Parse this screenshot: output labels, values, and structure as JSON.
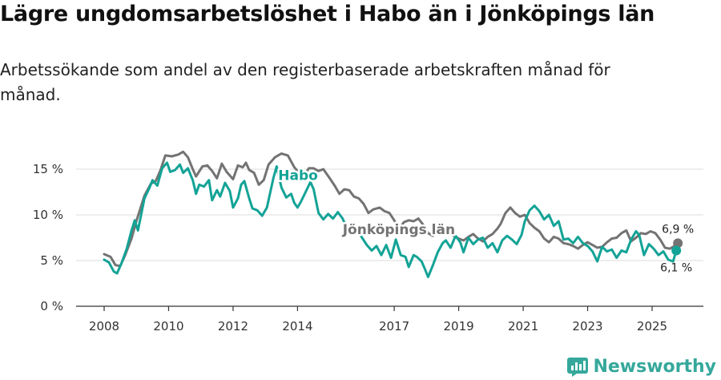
{
  "title": "Lägre ungdomsarbetslöshet i Habo än i Jönköpings län",
  "subtitle": "Arbetssökande som andel av den registerbaserade arbetskraften månad för månad.",
  "brand": {
    "name": "Newsworthy",
    "icon": "newsworthy-logo-icon",
    "color": "#35a89b"
  },
  "chart_data": {
    "type": "line",
    "title": "Lägre ungdomsarbetslöshet i Habo än i Jönköpings län",
    "xlabel": "",
    "ylabel": "",
    "xlim": [
      2007.6,
      2026.6
    ],
    "ylim": [
      0,
      17.5
    ],
    "grid": true,
    "y_ticks": [
      {
        "value": 0,
        "label": "0 %"
      },
      {
        "value": 5,
        "label": "5 %"
      },
      {
        "value": 10,
        "label": "10 %"
      },
      {
        "value": 15,
        "label": "15 %"
      }
    ],
    "x_ticks": [
      {
        "value": 2008,
        "label": "2008"
      },
      {
        "value": 2010,
        "label": "2010"
      },
      {
        "value": 2012,
        "label": "2012"
      },
      {
        "value": 2014,
        "label": "2014"
      },
      {
        "value": 2017,
        "label": "2017"
      },
      {
        "value": 2019,
        "label": "2019"
      },
      {
        "value": 2021,
        "label": "2021"
      },
      {
        "value": 2023,
        "label": "2023"
      },
      {
        "value": 2025,
        "label": "2025"
      }
    ],
    "series": [
      {
        "name": "Jönköpings län",
        "color": "#737373",
        "label_at": [
          2015.4,
          7.9
        ],
        "end_label": "6,9 %",
        "points": [
          [
            2008.0,
            5.7
          ],
          [
            2008.2,
            5.4
          ],
          [
            2008.35,
            4.5
          ],
          [
            2008.5,
            4.4
          ],
          [
            2008.65,
            5.6
          ],
          [
            2008.85,
            7.4
          ],
          [
            2009.0,
            9.3
          ],
          [
            2009.25,
            12.1
          ],
          [
            2009.45,
            13.4
          ],
          [
            2009.6,
            13.7
          ],
          [
            2009.75,
            14.9
          ],
          [
            2009.9,
            16.5
          ],
          [
            2010.1,
            16.4
          ],
          [
            2010.3,
            16.6
          ],
          [
            2010.45,
            16.9
          ],
          [
            2010.6,
            16.3
          ],
          [
            2010.75,
            15.0
          ],
          [
            2010.85,
            14.2
          ],
          [
            2011.05,
            15.3
          ],
          [
            2011.2,
            15.4
          ],
          [
            2011.35,
            14.8
          ],
          [
            2011.5,
            14.0
          ],
          [
            2011.65,
            15.6
          ],
          [
            2011.8,
            14.7
          ],
          [
            2012.0,
            13.9
          ],
          [
            2012.15,
            15.4
          ],
          [
            2012.3,
            15.2
          ],
          [
            2012.4,
            15.7
          ],
          [
            2012.5,
            14.9
          ],
          [
            2012.65,
            14.6
          ],
          [
            2012.8,
            13.3
          ],
          [
            2012.95,
            13.8
          ],
          [
            2013.1,
            15.5
          ],
          [
            2013.3,
            16.3
          ],
          [
            2013.5,
            16.7
          ],
          [
            2013.7,
            16.5
          ],
          [
            2013.9,
            15.2
          ],
          [
            2014.05,
            14.6
          ],
          [
            2014.2,
            14.3
          ],
          [
            2014.35,
            15.1
          ],
          [
            2014.5,
            15.1
          ],
          [
            2014.65,
            14.8
          ],
          [
            2014.8,
            15.0
          ],
          [
            2015.0,
            14.0
          ],
          [
            2015.15,
            13.2
          ],
          [
            2015.3,
            12.3
          ],
          [
            2015.45,
            12.8
          ],
          [
            2015.6,
            12.7
          ],
          [
            2015.75,
            12.0
          ],
          [
            2015.9,
            11.8
          ],
          [
            2016.05,
            11.2
          ],
          [
            2016.2,
            10.2
          ],
          [
            2016.35,
            10.6
          ],
          [
            2016.55,
            10.8
          ],
          [
            2016.7,
            10.4
          ],
          [
            2016.85,
            10.2
          ],
          [
            2017.0,
            9.4
          ],
          [
            2017.15,
            8.4
          ],
          [
            2017.3,
            9.2
          ],
          [
            2017.45,
            9.4
          ],
          [
            2017.6,
            9.3
          ],
          [
            2017.75,
            9.6
          ],
          [
            2017.9,
            8.9
          ],
          [
            2018.05,
            8.0
          ],
          [
            2018.2,
            7.7
          ],
          [
            2018.35,
            8.3
          ],
          [
            2018.5,
            8.3
          ],
          [
            2018.65,
            8.0
          ],
          [
            2018.8,
            7.8
          ],
          [
            2019.0,
            7.4
          ],
          [
            2019.15,
            7.2
          ],
          [
            2019.3,
            7.6
          ],
          [
            2019.45,
            7.9
          ],
          [
            2019.6,
            7.4
          ],
          [
            2019.75,
            7.1
          ],
          [
            2019.9,
            7.6
          ],
          [
            2020.05,
            7.9
          ],
          [
            2020.2,
            8.5
          ],
          [
            2020.3,
            9.0
          ],
          [
            2020.45,
            10.2
          ],
          [
            2020.6,
            10.8
          ],
          [
            2020.75,
            10.2
          ],
          [
            2020.9,
            9.8
          ],
          [
            2021.05,
            10.0
          ],
          [
            2021.2,
            9.1
          ],
          [
            2021.35,
            8.6
          ],
          [
            2021.5,
            8.2
          ],
          [
            2021.65,
            7.4
          ],
          [
            2021.8,
            7.0
          ],
          [
            2021.95,
            7.6
          ],
          [
            2022.1,
            7.4
          ],
          [
            2022.25,
            6.9
          ],
          [
            2022.4,
            6.8
          ],
          [
            2022.55,
            6.6
          ],
          [
            2022.7,
            6.3
          ],
          [
            2022.85,
            6.7
          ],
          [
            2023.0,
            7.0
          ],
          [
            2023.15,
            6.7
          ],
          [
            2023.3,
            6.4
          ],
          [
            2023.45,
            6.5
          ],
          [
            2023.6,
            7.0
          ],
          [
            2023.75,
            7.4
          ],
          [
            2023.9,
            7.5
          ],
          [
            2024.05,
            8.0
          ],
          [
            2024.2,
            8.3
          ],
          [
            2024.35,
            7.1
          ],
          [
            2024.5,
            7.5
          ],
          [
            2024.65,
            8.0
          ],
          [
            2024.8,
            7.9
          ],
          [
            2024.95,
            8.2
          ],
          [
            2025.1,
            8.0
          ],
          [
            2025.25,
            7.3
          ],
          [
            2025.4,
            6.4
          ],
          [
            2025.55,
            6.3
          ],
          [
            2025.7,
            6.6
          ],
          [
            2025.8,
            6.9
          ]
        ]
      },
      {
        "name": "Habo",
        "color": "#13a396",
        "label_at": [
          2013.4,
          13.8
        ],
        "end_label": "6,1 %",
        "points": [
          [
            2008.0,
            5.1
          ],
          [
            2008.15,
            4.8
          ],
          [
            2008.3,
            3.8
          ],
          [
            2008.4,
            3.6
          ],
          [
            2008.55,
            4.8
          ],
          [
            2008.7,
            6.3
          ],
          [
            2008.85,
            8.3
          ],
          [
            2008.95,
            9.4
          ],
          [
            2009.05,
            8.3
          ],
          [
            2009.25,
            11.8
          ],
          [
            2009.4,
            12.9
          ],
          [
            2009.5,
            13.8
          ],
          [
            2009.65,
            13.2
          ],
          [
            2009.8,
            15.1
          ],
          [
            2009.95,
            15.7
          ],
          [
            2010.05,
            14.7
          ],
          [
            2010.2,
            14.9
          ],
          [
            2010.35,
            15.5
          ],
          [
            2010.45,
            14.6
          ],
          [
            2010.6,
            15.1
          ],
          [
            2010.75,
            13.8
          ],
          [
            2010.85,
            12.3
          ],
          [
            2010.95,
            13.3
          ],
          [
            2011.1,
            13.1
          ],
          [
            2011.25,
            13.8
          ],
          [
            2011.35,
            11.6
          ],
          [
            2011.5,
            12.7
          ],
          [
            2011.6,
            12.0
          ],
          [
            2011.75,
            13.5
          ],
          [
            2011.9,
            12.6
          ],
          [
            2012.0,
            10.8
          ],
          [
            2012.15,
            11.8
          ],
          [
            2012.25,
            13.3
          ],
          [
            2012.35,
            13.7
          ],
          [
            2012.5,
            11.8
          ],
          [
            2012.6,
            10.7
          ],
          [
            2012.75,
            10.5
          ],
          [
            2012.9,
            9.9
          ],
          [
            2013.05,
            10.8
          ],
          [
            2013.25,
            14.0
          ],
          [
            2013.35,
            15.3
          ],
          [
            2013.5,
            13.0
          ],
          [
            2013.65,
            11.9
          ],
          [
            2013.8,
            12.3
          ],
          [
            2013.9,
            11.3
          ],
          [
            2014.0,
            10.8
          ],
          [
            2014.1,
            11.4
          ],
          [
            2014.25,
            12.5
          ],
          [
            2014.4,
            13.6
          ],
          [
            2014.5,
            12.8
          ],
          [
            2014.65,
            10.2
          ],
          [
            2014.8,
            9.5
          ],
          [
            2014.95,
            10.1
          ],
          [
            2015.1,
            9.6
          ],
          [
            2015.25,
            10.3
          ],
          [
            2015.4,
            9.6
          ],
          [
            2015.55,
            8.3
          ],
          [
            2015.7,
            8.9
          ],
          [
            2015.85,
            8.4
          ],
          [
            2016.0,
            7.5
          ],
          [
            2016.15,
            6.7
          ],
          [
            2016.3,
            6.1
          ],
          [
            2016.45,
            6.6
          ],
          [
            2016.6,
            5.6
          ],
          [
            2016.75,
            6.7
          ],
          [
            2016.9,
            5.3
          ],
          [
            2017.05,
            7.3
          ],
          [
            2017.2,
            5.6
          ],
          [
            2017.35,
            5.4
          ],
          [
            2017.45,
            4.3
          ],
          [
            2017.6,
            5.6
          ],
          [
            2017.7,
            5.4
          ],
          [
            2017.85,
            4.9
          ],
          [
            2017.95,
            4.1
          ],
          [
            2018.05,
            3.2
          ],
          [
            2018.2,
            4.5
          ],
          [
            2018.35,
            5.9
          ],
          [
            2018.5,
            6.9
          ],
          [
            2018.6,
            7.2
          ],
          [
            2018.75,
            6.4
          ],
          [
            2018.9,
            7.7
          ],
          [
            2019.05,
            7.0
          ],
          [
            2019.15,
            5.9
          ],
          [
            2019.3,
            7.5
          ],
          [
            2019.45,
            6.8
          ],
          [
            2019.6,
            7.3
          ],
          [
            2019.75,
            7.5
          ],
          [
            2019.9,
            6.4
          ],
          [
            2020.05,
            6.9
          ],
          [
            2020.2,
            5.9
          ],
          [
            2020.35,
            7.2
          ],
          [
            2020.5,
            7.7
          ],
          [
            2020.65,
            7.3
          ],
          [
            2020.8,
            6.8
          ],
          [
            2020.95,
            7.8
          ],
          [
            2021.05,
            9.3
          ],
          [
            2021.2,
            10.5
          ],
          [
            2021.35,
            11.0
          ],
          [
            2021.5,
            10.4
          ],
          [
            2021.65,
            9.5
          ],
          [
            2021.8,
            10.0
          ],
          [
            2021.95,
            8.8
          ],
          [
            2022.1,
            9.3
          ],
          [
            2022.25,
            7.3
          ],
          [
            2022.4,
            7.4
          ],
          [
            2022.55,
            6.9
          ],
          [
            2022.7,
            7.6
          ],
          [
            2022.85,
            6.9
          ],
          [
            2023.0,
            6.6
          ],
          [
            2023.15,
            6.0
          ],
          [
            2023.3,
            4.9
          ],
          [
            2023.45,
            6.5
          ],
          [
            2023.6,
            6.0
          ],
          [
            2023.75,
            6.2
          ],
          [
            2023.9,
            5.3
          ],
          [
            2024.05,
            6.1
          ],
          [
            2024.2,
            5.9
          ],
          [
            2024.35,
            7.3
          ],
          [
            2024.5,
            8.2
          ],
          [
            2024.6,
            7.8
          ],
          [
            2024.75,
            5.6
          ],
          [
            2024.9,
            6.8
          ],
          [
            2025.05,
            6.3
          ],
          [
            2025.2,
            5.6
          ],
          [
            2025.35,
            6.0
          ],
          [
            2025.5,
            5.1
          ],
          [
            2025.65,
            4.9
          ],
          [
            2025.75,
            6.1
          ]
        ]
      }
    ]
  }
}
